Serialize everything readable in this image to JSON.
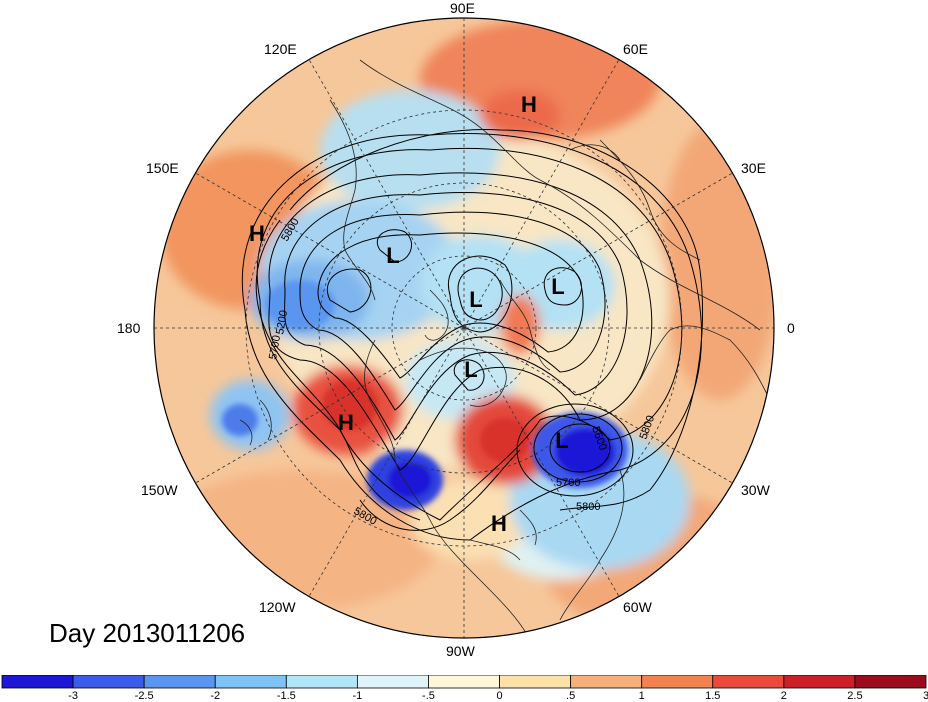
{
  "title": "Day 2013011206",
  "map": {
    "projection": "north-polar-stereographic",
    "longitude_labels": [
      "90E",
      "60E",
      "30E",
      "0",
      "30W",
      "60W",
      "90W",
      "120W",
      "150W",
      "180",
      "150E",
      "120E"
    ],
    "contour_labels": [
      "5800",
      "5200",
      "5700",
      "5600",
      "5800",
      "5700",
      "5800",
      "5800"
    ],
    "pressure_centers": [
      "H",
      "L",
      "L",
      "L",
      "L",
      "H",
      "L",
      "H",
      "H"
    ],
    "colors": {
      "warm_strong": "#e84235",
      "cold_strong": "#2b3fe0",
      "ocean_neutral": "#f3ead0"
    }
  },
  "colorbar": {
    "tick_labels": [
      "-3",
      "-2.5",
      "-2",
      "-1.5",
      "-1",
      "-.5",
      "0",
      ".5",
      "1",
      "1.5",
      "2",
      "2.5",
      "3"
    ],
    "colors": [
      "#1c16d6",
      "#3b5ce8",
      "#5a96f0",
      "#7dc3f5",
      "#b2e5f8",
      "#dff4fa",
      "#fdf6d8",
      "#fce2a6",
      "#f8b07a",
      "#f2824f",
      "#ea4a3a",
      "#cc1f28",
      "#9a0c1c"
    ]
  }
}
